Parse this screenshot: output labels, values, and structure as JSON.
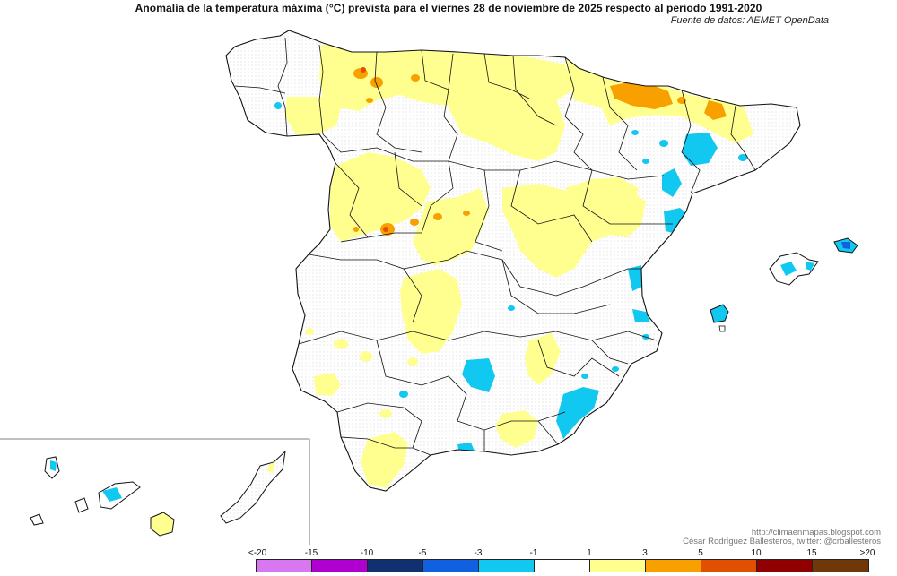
{
  "title": "Anomalía de la temperatura máxima (°C) prevista para el viernes 28 de noviembre de 2025 respecto al periodo 1991-2020",
  "source": "Fuente de datos: AEMET OpenData",
  "credits": {
    "url": "http://climaenmapas.blogspot.com",
    "author": "César Rodríguez Ballesteros, twitter: @crballesteros"
  },
  "legend": {
    "labels": [
      "<-20",
      "-15",
      "-10",
      "-5",
      "-3",
      "-1",
      "1",
      "3",
      "5",
      "10",
      "15",
      ">20"
    ],
    "colors": [
      "#d878f0",
      "#b000d0",
      "#103070",
      "#1060e0",
      "#10c8f0",
      "#ffffff",
      "#ffff90",
      "#f8a000",
      "#e05000",
      "#900000",
      "#703808"
    ]
  },
  "colors": {
    "no_anomaly": "#ffffff",
    "slight_warm": "#ffff90",
    "warm": "#f8a000",
    "strong_warm": "#e05000",
    "slight_cold": "#10c8f0",
    "cold": "#1060e0"
  }
}
